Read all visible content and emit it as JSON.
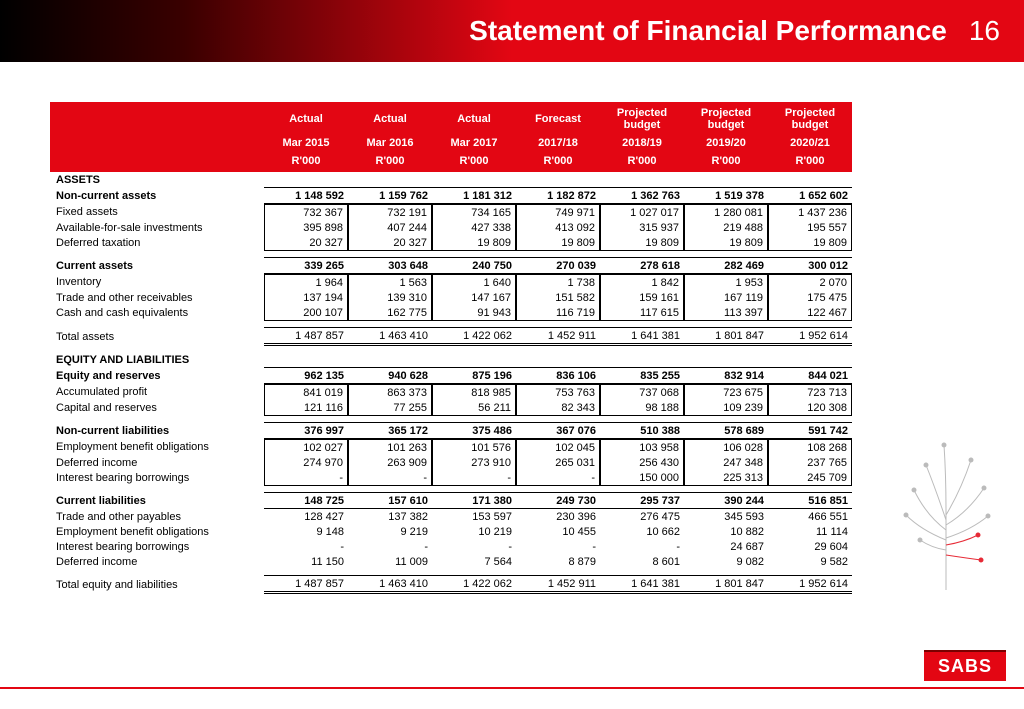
{
  "header": {
    "title": "Statement of Financial Performance",
    "page_number": "16",
    "gradient_from": "#000000",
    "gradient_to": "#e30613"
  },
  "logo_text": "SABS",
  "colors": {
    "brand_red": "#e30613",
    "text": "#000000",
    "bg": "#ffffff"
  },
  "table": {
    "columns": [
      {
        "top": "Actual",
        "mid": "Mar 2015",
        "unit": "R'000"
      },
      {
        "top": "Actual",
        "mid": "Mar 2016",
        "unit": "R'000"
      },
      {
        "top": "Actual",
        "mid": "Mar 2017",
        "unit": "R'000"
      },
      {
        "top": "Forecast",
        "mid": "2017/18",
        "unit": "R'000"
      },
      {
        "top": "Projected budget",
        "mid": "2018/19",
        "unit": "R'000"
      },
      {
        "top": "Projected budget",
        "mid": "2019/20",
        "unit": "R'000"
      },
      {
        "top": "Projected budget",
        "mid": "2020/21",
        "unit": "R'000"
      }
    ],
    "sections": [
      {
        "kind": "section",
        "label": "ASSETS"
      },
      {
        "kind": "subtotal",
        "label": "Non-current assets",
        "values": [
          "1 148 592",
          "1 159 762",
          "1 181 312",
          "1 182 872",
          "1 362 763",
          "1 519 378",
          "1 652 602"
        ]
      },
      {
        "kind": "detail_group",
        "rows": [
          {
            "label": "Fixed assets",
            "values": [
              "732 367",
              "732 191",
              "734 165",
              "749 971",
              "1 027 017",
              "1 280 081",
              "1 437 236"
            ]
          },
          {
            "label": "Available-for-sale investments",
            "values": [
              "395 898",
              "407 244",
              "427 338",
              "413 092",
              "315 937",
              "219 488",
              "195 557"
            ]
          },
          {
            "label": "Deferred taxation",
            "values": [
              "20 327",
              "20 327",
              "19 809",
              "19 809",
              "19 809",
              "19 809",
              "19 809"
            ]
          }
        ]
      },
      {
        "kind": "spacer"
      },
      {
        "kind": "subtotal",
        "label": "Current assets",
        "values": [
          "339 265",
          "303 648",
          "240 750",
          "270 039",
          "278 618",
          "282 469",
          "300 012"
        ]
      },
      {
        "kind": "detail_group",
        "rows": [
          {
            "label": "Inventory",
            "values": [
              "1 964",
              "1 563",
              "1 640",
              "1 738",
              "1 842",
              "1 953",
              "2 070"
            ]
          },
          {
            "label": "Trade and other receivables",
            "values": [
              "137 194",
              "139 310",
              "147 167",
              "151 582",
              "159 161",
              "167 119",
              "175 475"
            ]
          },
          {
            "label": "Cash and cash equivalents",
            "values": [
              "200 107",
              "162 775",
              "91 943",
              "116 719",
              "117 615",
              "113 397",
              "122 467"
            ]
          }
        ]
      },
      {
        "kind": "spacer"
      },
      {
        "kind": "grand",
        "label": "Total assets",
        "values": [
          "1 487 857",
          "1 463 410",
          "1 422 062",
          "1 452 911",
          "1 641 381",
          "1 801 847",
          "1 952 614"
        ]
      },
      {
        "kind": "spacer"
      },
      {
        "kind": "section",
        "label": "EQUITY AND LIABILITIES"
      },
      {
        "kind": "subtotal",
        "label": "Equity and reserves",
        "values": [
          "962 135",
          "940 628",
          "875 196",
          "836 106",
          "835 255",
          "832 914",
          "844 021"
        ]
      },
      {
        "kind": "detail_group",
        "rows": [
          {
            "label": "Accumulated profit",
            "values": [
              "841 019",
              "863 373",
              "818 985",
              "753 763",
              "737 068",
              "723 675",
              "723 713"
            ]
          },
          {
            "label": "Capital and reserves",
            "values": [
              "121 116",
              "77 255",
              "56 211",
              "82 343",
              "98 188",
              "109 239",
              "120 308"
            ]
          }
        ]
      },
      {
        "kind": "spacer"
      },
      {
        "kind": "subtotal",
        "label": "Non-current liabilities",
        "values": [
          "376 997",
          "365 172",
          "375 486",
          "367 076",
          "510 388",
          "578 689",
          "591 742"
        ]
      },
      {
        "kind": "detail_group",
        "rows": [
          {
            "label": "Employment benefit obligations",
            "values": [
              "102 027",
              "101 263",
              "101 576",
              "102 045",
              "103 958",
              "106 028",
              "108 268"
            ]
          },
          {
            "label": "Deferred income",
            "values": [
              "274 970",
              "263 909",
              "273 910",
              "265 031",
              "256 430",
              "247 348",
              "237 765"
            ]
          },
          {
            "label": "Interest bearing borrowings",
            "values": [
              "-",
              "-",
              "-",
              "-",
              "150 000",
              "225 313",
              "245 709"
            ]
          }
        ]
      },
      {
        "kind": "spacer"
      },
      {
        "kind": "subtotal",
        "label": "Current liabilities",
        "values": [
          "148 725",
          "157 610",
          "171 380",
          "249 730",
          "295 737",
          "390 244",
          "516 851"
        ]
      },
      {
        "kind": "plain_group",
        "rows": [
          {
            "label": "Trade and other payables",
            "values": [
              "128 427",
              "137 382",
              "153 597",
              "230 396",
              "276 475",
              "345 593",
              "466 551"
            ]
          },
          {
            "label": "Employment benefit obligations",
            "values": [
              "9 148",
              "9 219",
              "10 219",
              "10 455",
              "10 662",
              "10 882",
              "11 114"
            ]
          },
          {
            "label": "Interest bearing borrowings",
            "values": [
              "-",
              "-",
              "-",
              "-",
              "-",
              "24 687",
              "29 604"
            ]
          },
          {
            "label": "Deferred income",
            "values": [
              "11 150",
              "11 009",
              "7 564",
              "8 879",
              "8 601",
              "9 082",
              "9 582"
            ]
          }
        ]
      },
      {
        "kind": "spacer"
      },
      {
        "kind": "grand",
        "label": "Total equity and liabilities",
        "values": [
          "1 487 857",
          "1 463 410",
          "1 422 062",
          "1 452 911",
          "1 641 381",
          "1 801 847",
          "1 952 614"
        ]
      }
    ]
  }
}
